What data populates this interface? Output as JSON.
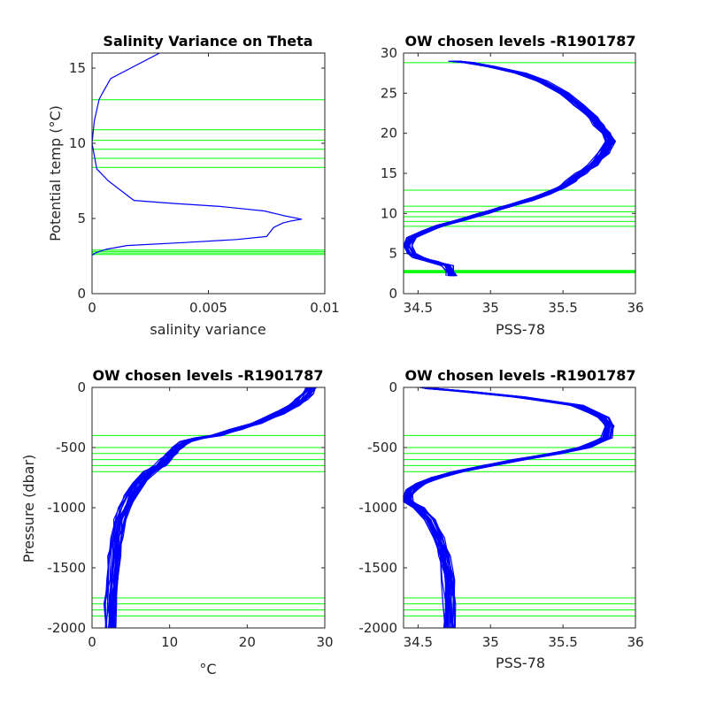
{
  "chart_data": [
    {
      "type": "line",
      "title": "Salinity Variance on Theta",
      "xlabel": "salinity variance",
      "ylabel": "Potential temp (°C)",
      "ylabel_base": "Potential temp (",
      "ylabel_unit": "°C",
      "ylabel_end": ")",
      "xlim": [
        0,
        0.01
      ],
      "ylim": [
        0,
        16
      ],
      "xticks": [
        0,
        0.005,
        0.01
      ],
      "xtick_labels": [
        "0",
        "0.005",
        "0.01"
      ],
      "yticks": [
        0,
        5,
        10,
        15
      ],
      "ytick_labels": [
        "0",
        "5",
        "10",
        "15"
      ],
      "series": [
        {
          "color": "#0000ff",
          "x": [
            5e-05,
            5e-05,
            0.0002,
            0.0006,
            0.0015,
            0.004,
            0.0062,
            0.0075,
            0.0076,
            0.0078,
            0.0082,
            0.0086,
            0.009,
            0.0082,
            0.0074,
            0.0055,
            0.0035,
            0.0018,
            0.0007,
            0.0002,
            0.0,
            0.0001,
            0.0002,
            0.0003,
            0.0004,
            0.0008,
            0.0029
          ],
          "y": [
            2.55,
            2.62,
            2.75,
            2.95,
            3.2,
            3.4,
            3.6,
            3.8,
            4.0,
            4.4,
            4.7,
            4.85,
            4.95,
            5.2,
            5.5,
            5.8,
            6.0,
            6.2,
            7.5,
            8.3,
            10.0,
            11.5,
            12.2,
            12.9,
            13.2,
            14.3,
            16.0
          ]
        }
      ],
      "levels_y": [
        2.6,
        2.7,
        2.8,
        2.9,
        8.4,
        9.0,
        9.6,
        10.2,
        10.9,
        12.9
      ]
    },
    {
      "type": "line",
      "title": "OW chosen levels -R1901787",
      "xlabel": "PSS-78",
      "ylabel": "",
      "xlim": [
        34.4,
        36
      ],
      "ylim": [
        0,
        30
      ],
      "xticks": [
        34.5,
        35,
        35.5,
        36
      ],
      "xtick_labels": [
        "34.5",
        "35",
        "35.5",
        "36"
      ],
      "yticks": [
        0,
        5,
        10,
        15,
        20,
        25,
        30
      ],
      "ytick_labels": [
        "0",
        "5",
        "10",
        "15",
        "20",
        "25",
        "30"
      ],
      "series": [
        {
          "color": "#0000ff",
          "x": [
            34.73,
            34.72,
            34.7,
            34.6,
            34.5,
            34.45,
            34.42,
            34.45,
            34.55,
            34.66,
            34.8,
            34.95,
            35.1,
            35.25,
            35.38,
            35.48,
            35.55,
            35.62,
            35.7,
            35.78,
            35.82,
            35.8,
            35.75,
            35.7,
            35.6,
            35.5,
            35.35,
            35.2,
            35.0,
            34.85,
            34.75
          ],
          "y": [
            2.2,
            2.8,
            3.5,
            4.0,
            4.5,
            5.0,
            6.0,
            7.0,
            7.8,
            8.5,
            9.2,
            10.0,
            10.8,
            11.6,
            12.4,
            13.2,
            14.0,
            15.0,
            16.0,
            17.5,
            19.0,
            20.0,
            21.0,
            22.0,
            23.5,
            25.0,
            26.5,
            27.5,
            28.3,
            28.8,
            29.0
          ]
        }
      ],
      "levels_y": [
        2.6,
        2.7,
        2.8,
        2.9,
        8.4,
        9.0,
        9.6,
        10.2,
        10.9,
        12.9,
        28.8
      ]
    },
    {
      "type": "line",
      "title": "OW chosen levels -R1901787",
      "xlabel": "°C",
      "ylabel": "Pressure (dbar)",
      "xlim": [
        0,
        30
      ],
      "ylim": [
        -2000,
        0
      ],
      "xticks": [
        0,
        10,
        20,
        30
      ],
      "xtick_labels": [
        "0",
        "10",
        "20",
        "30"
      ],
      "yticks": [
        -2000,
        -1500,
        -1000,
        -500,
        0
      ],
      "ytick_labels": [
        "-2000",
        "-1500",
        "-1000",
        "-500",
        "0"
      ],
      "series": [
        {
          "color": "#0000ff",
          "x": [
            2.3,
            2.4,
            2.6,
            2.8,
            3.2,
            3.6,
            4.2,
            5.0,
            6.0,
            7.5,
            8.8,
            9.5,
            10.2,
            11.0,
            12.0,
            14.0,
            16.0,
            18.5,
            21.0,
            24.0,
            26.0,
            27.0,
            27.8,
            28.2
          ],
          "y": [
            -2000,
            -1800,
            -1600,
            -1400,
            -1250,
            -1100,
            -1000,
            -900,
            -800,
            -700,
            -650,
            -600,
            -550,
            -500,
            -450,
            -420,
            -400,
            -350,
            -300,
            -220,
            -150,
            -100,
            -50,
            0
          ]
        }
      ],
      "levels_y": [
        -400,
        -500,
        -550,
        -600,
        -650,
        -700,
        -1750,
        -1800,
        -1850,
        -1900
      ]
    },
    {
      "type": "line",
      "title": "OW chosen levels -R1901787",
      "xlabel": "PSS-78",
      "ylabel": "",
      "xlim": [
        34.4,
        36
      ],
      "ylim": [
        -2000,
        0
      ],
      "xticks": [
        34.5,
        35,
        35.5,
        36
      ],
      "xtick_labels": [
        "34.5",
        "35",
        "35.5",
        "36"
      ],
      "yticks": [
        -2000,
        -1500,
        -1000,
        -500,
        0
      ],
      "ytick_labels": [
        "-2000",
        "-1500",
        "-1000",
        "-500",
        "0"
      ],
      "series": [
        {
          "color": "#0000ff",
          "x": [
            34.72,
            34.72,
            34.71,
            34.68,
            34.64,
            34.58,
            34.5,
            34.43,
            34.42,
            34.45,
            34.52,
            34.62,
            34.78,
            34.98,
            35.2,
            35.45,
            35.65,
            35.8,
            35.82,
            35.78,
            35.6,
            35.2,
            34.8,
            34.6,
            34.55
          ],
          "y": [
            -2000,
            -1800,
            -1600,
            -1400,
            -1250,
            -1100,
            -1000,
            -950,
            -900,
            -850,
            -800,
            -750,
            -700,
            -650,
            -600,
            -550,
            -500,
            -420,
            -320,
            -250,
            -150,
            -80,
            -30,
            -10,
            0
          ]
        }
      ],
      "levels_y": [
        -400,
        -500,
        -550,
        -600,
        -650,
        -700,
        -1750,
        -1800,
        -1850,
        -1900
      ]
    }
  ]
}
